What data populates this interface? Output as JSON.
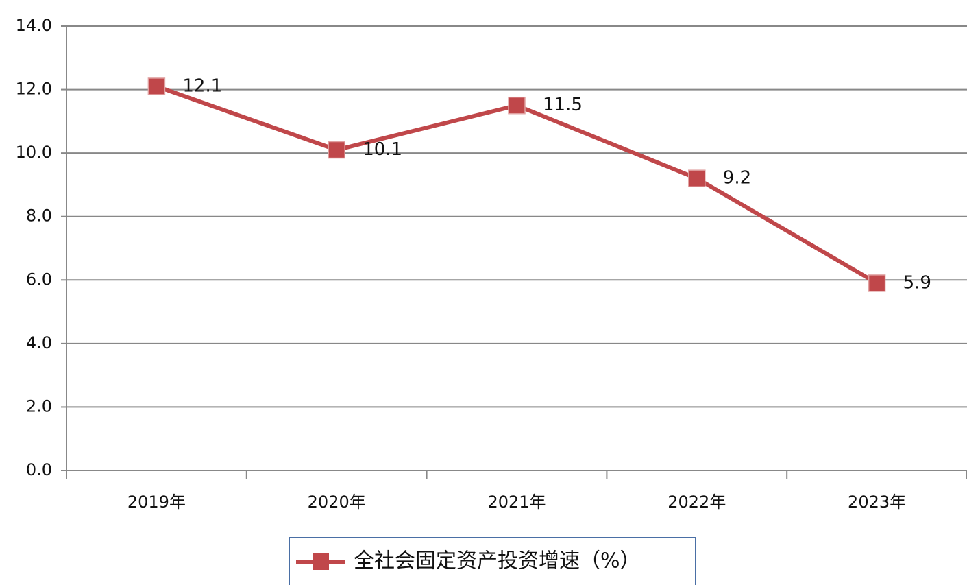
{
  "chart_data": {
    "type": "line",
    "categories": [
      "2019年",
      "2020年",
      "2021年",
      "2022年",
      "2023年"
    ],
    "series": [
      {
        "name": "全社会固定资产投资增速（%）",
        "color": "#c0474a",
        "values": [
          12.1,
          10.1,
          11.5,
          9.2,
          5.9
        ]
      }
    ],
    "ylim": [
      0,
      14
    ],
    "yticks": [
      {
        "value": 0,
        "label": "0.0"
      },
      {
        "value": 2,
        "label": "2.0"
      },
      {
        "value": 4,
        "label": "4.0"
      },
      {
        "value": 6,
        "label": "6.0"
      },
      {
        "value": 8,
        "label": "8.0"
      },
      {
        "value": 10,
        "label": "10.0"
      },
      {
        "value": 12,
        "label": "12.0"
      },
      {
        "value": 14,
        "label": "14.0"
      }
    ],
    "grid": true,
    "legend": "bottom"
  }
}
